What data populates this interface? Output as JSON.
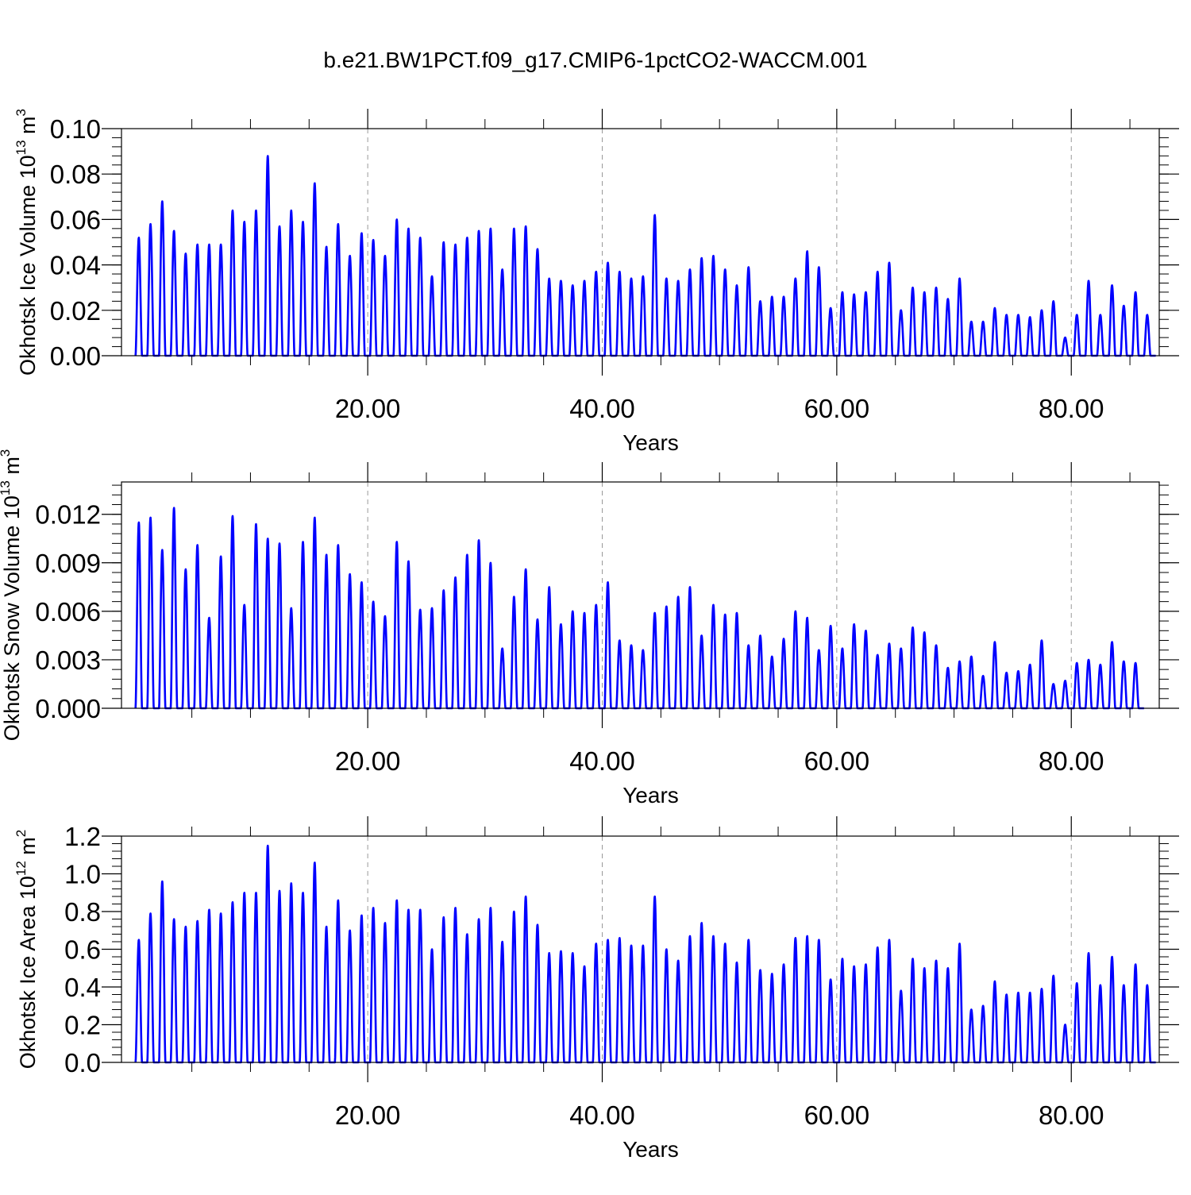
{
  "title": "b.e21.BW1PCT.f09_g17.CMIP6-1pctCO2-WACCM.001",
  "colors": {
    "series": "#0000ff",
    "axis": "#000000",
    "grid": "#999999"
  },
  "chart_data": [
    {
      "type": "line",
      "ylabel": {
        "text": "Okhotsk Ice Volume 10",
        "exp": "13",
        "unit": " m",
        "unit_exp": "3"
      },
      "xlabel": "Years",
      "xlim": [
        -1.0,
        87.5
      ],
      "ylim": [
        0.0,
        0.1
      ],
      "x_ticks": [
        20,
        40,
        60,
        80
      ],
      "x_tick_labels": [
        "20.00",
        "40.00",
        "60.00",
        "80.00"
      ],
      "y_ticks": [
        0.0,
        0.02,
        0.04,
        0.06,
        0.08,
        0.1
      ],
      "y_tick_labels": [
        "0.00",
        "0.02",
        "0.04",
        "0.06",
        "0.08",
        "0.10"
      ],
      "vertical_grid": "dashed at major x ticks",
      "series": [
        {
          "x_start": 0.2,
          "x_step": 1,
          "annual_peaks": [
            0.052,
            0.058,
            0.068,
            0.055,
            0.045,
            0.049,
            0.049,
            0.049,
            0.064,
            0.059,
            0.064,
            0.088,
            0.057,
            0.064,
            0.059,
            0.076,
            0.048,
            0.058,
            0.044,
            0.054,
            0.051,
            0.044,
            0.06,
            0.056,
            0.052,
            0.035,
            0.05,
            0.049,
            0.052,
            0.055,
            0.056,
            0.038,
            0.056,
            0.057,
            0.047,
            0.034,
            0.033,
            0.031,
            0.033,
            0.037,
            0.041,
            0.037,
            0.034,
            0.035,
            0.062,
            0.034,
            0.033,
            0.038,
            0.043,
            0.044,
            0.038,
            0.031,
            0.039,
            0.024,
            0.026,
            0.026,
            0.034,
            0.046,
            0.039,
            0.021,
            0.028,
            0.027,
            0.028,
            0.037,
            0.041,
            0.02,
            0.03,
            0.028,
            0.03,
            0.025,
            0.034,
            0.015,
            0.015,
            0.021,
            0.018,
            0.018,
            0.017,
            0.02,
            0.024,
            0.008,
            0.018,
            0.033,
            0.018,
            0.031,
            0.022,
            0.028,
            0.018
          ]
        }
      ]
    },
    {
      "type": "line",
      "ylabel": {
        "text": "Okhotsk Snow Volume 10",
        "exp": "13",
        "unit": " m",
        "unit_exp": "3"
      },
      "xlabel": "Years",
      "xlim": [
        -1.0,
        87.5
      ],
      "ylim": [
        0.0,
        0.014
      ],
      "x_ticks": [
        20,
        40,
        60,
        80
      ],
      "x_tick_labels": [
        "20.00",
        "40.00",
        "60.00",
        "80.00"
      ],
      "y_ticks": [
        0.0,
        0.003,
        0.006,
        0.009,
        0.012
      ],
      "y_tick_labels": [
        "0.000",
        "0.003",
        "0.006",
        "0.009",
        "0.012"
      ],
      "vertical_grid": "dashed at major x ticks",
      "series": [
        {
          "x_start": 0.2,
          "x_step": 1,
          "annual_peaks": [
            0.0115,
            0.0118,
            0.0098,
            0.0124,
            0.0086,
            0.0101,
            0.0056,
            0.0094,
            0.0119,
            0.0064,
            0.0114,
            0.0105,
            0.0102,
            0.0062,
            0.0103,
            0.0118,
            0.0095,
            0.0101,
            0.0083,
            0.0078,
            0.0066,
            0.0057,
            0.0103,
            0.0091,
            0.0061,
            0.0062,
            0.0073,
            0.0081,
            0.0095,
            0.0104,
            0.009,
            0.0037,
            0.0069,
            0.0086,
            0.0055,
            0.0075,
            0.0052,
            0.006,
            0.0059,
            0.0064,
            0.0078,
            0.0042,
            0.0039,
            0.0036,
            0.0059,
            0.0063,
            0.0069,
            0.0075,
            0.0045,
            0.0064,
            0.0058,
            0.0059,
            0.0039,
            0.0045,
            0.0032,
            0.0043,
            0.006,
            0.0056,
            0.0036,
            0.0051,
            0.0037,
            0.0052,
            0.0048,
            0.0033,
            0.004,
            0.0037,
            0.005,
            0.0047,
            0.0039,
            0.0025,
            0.0029,
            0.0032,
            0.002,
            0.0041,
            0.0022,
            0.0023,
            0.0027,
            0.0042,
            0.0015,
            0.0017,
            0.0028,
            0.003,
            0.0027,
            0.0041,
            0.0029,
            0.0028
          ]
        }
      ]
    },
    {
      "type": "line",
      "ylabel": {
        "text": "Okhotsk Ice Area 10",
        "exp": "12",
        "unit": " m",
        "unit_exp": "2"
      },
      "xlabel": "Years",
      "xlim": [
        -1.0,
        87.5
      ],
      "ylim": [
        0.0,
        1.2
      ],
      "x_ticks": [
        20,
        40,
        60,
        80
      ],
      "x_tick_labels": [
        "20.00",
        "40.00",
        "60.00",
        "80.00"
      ],
      "y_ticks": [
        0.0,
        0.2,
        0.4,
        0.6,
        0.8,
        1.0,
        1.2
      ],
      "y_tick_labels": [
        "0.0",
        "0.2",
        "0.4",
        "0.6",
        "0.8",
        "1.0",
        "1.2"
      ],
      "vertical_grid": "dashed at major x ticks",
      "series": [
        {
          "x_start": 0.2,
          "x_step": 1,
          "annual_peaks": [
            0.65,
            0.79,
            0.96,
            0.76,
            0.72,
            0.75,
            0.81,
            0.79,
            0.85,
            0.9,
            0.9,
            1.15,
            0.91,
            0.95,
            0.9,
            1.06,
            0.72,
            0.86,
            0.7,
            0.78,
            0.82,
            0.74,
            0.86,
            0.81,
            0.81,
            0.6,
            0.77,
            0.82,
            0.68,
            0.76,
            0.82,
            0.64,
            0.8,
            0.88,
            0.73,
            0.58,
            0.59,
            0.58,
            0.51,
            0.63,
            0.65,
            0.66,
            0.62,
            0.62,
            0.88,
            0.6,
            0.54,
            0.67,
            0.74,
            0.67,
            0.63,
            0.53,
            0.65,
            0.49,
            0.47,
            0.52,
            0.66,
            0.67,
            0.65,
            0.44,
            0.55,
            0.51,
            0.52,
            0.61,
            0.65,
            0.38,
            0.55,
            0.5,
            0.54,
            0.5,
            0.63,
            0.28,
            0.3,
            0.43,
            0.36,
            0.37,
            0.37,
            0.39,
            0.46,
            0.2,
            0.42,
            0.58,
            0.41,
            0.56,
            0.41,
            0.52,
            0.41
          ]
        }
      ]
    }
  ]
}
